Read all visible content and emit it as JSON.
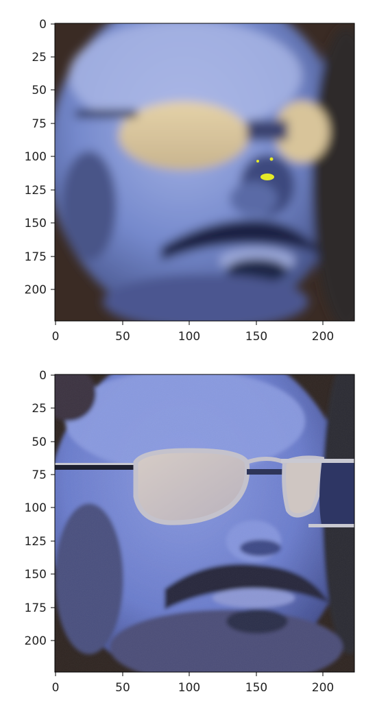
{
  "colors": {
    "skin": "#7286c8",
    "skin_light": "#9aa9de",
    "shadow": "#2e3559",
    "lens_top": "#d9c29a",
    "lens_bottom": "#c9c2c8",
    "hair": "#2a2a33",
    "background_dark": "#3b2b22",
    "marker": "#e5ea28",
    "frame": "#c9c9d2"
  },
  "panels": [
    {
      "name": "top-blurry-face",
      "description_icon": "face-image-blurred",
      "x_ticks": [
        "0",
        "50",
        "100",
        "150",
        "200"
      ],
      "y_ticks": [
        "0",
        "25",
        "50",
        "75",
        "100",
        "125",
        "150",
        "175",
        "200"
      ],
      "x_range": [
        0,
        224
      ],
      "y_range": [
        0,
        224
      ]
    },
    {
      "name": "bottom-sharp-face",
      "description_icon": "face-image-sharp",
      "x_ticks": [
        "0",
        "50",
        "100",
        "150",
        "200"
      ],
      "y_ticks": [
        "0",
        "25",
        "50",
        "75",
        "100",
        "125",
        "150",
        "175",
        "200"
      ],
      "x_range": [
        0,
        224
      ],
      "y_range": [
        0,
        224
      ]
    }
  ]
}
